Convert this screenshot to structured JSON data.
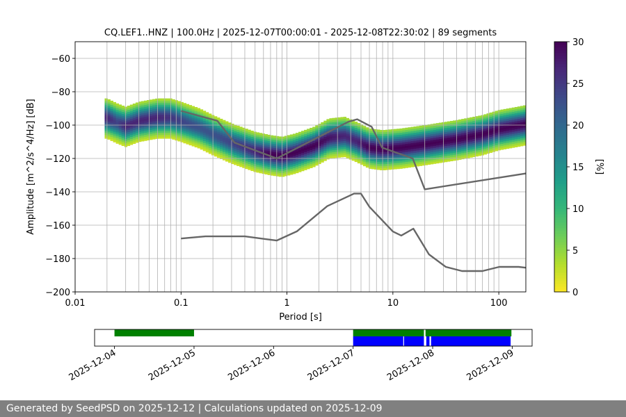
{
  "chart_data": [
    {
      "type": "heatmap",
      "title": "CQ.LEF1..HNZ | 100.0Hz | 2025-12-07T00:00:01 - 2025-12-08T22:30:02 | 89 segments",
      "xlabel": "Period [s]",
      "ylabel": "Amplitude [m^2/s^4/Hz] [dB]",
      "x_scale": "log",
      "xlim": [
        0.01,
        180
      ],
      "ylim": [
        -200,
        -50
      ],
      "x_ticks": [
        0.01,
        0.1,
        1,
        10,
        100
      ],
      "x_tick_labels": [
        "0.01",
        "0.1",
        "1",
        "10",
        "100"
      ],
      "y_ticks": [
        -200,
        -180,
        -160,
        -140,
        -120,
        -100,
        -80,
        -60
      ],
      "y_tick_labels": [
        "−200",
        "−180",
        "−160",
        "−140",
        "−120",
        "−100",
        "−80",
        "−60"
      ],
      "grid": true,
      "colorbar": {
        "label": "[%]",
        "range": [
          0,
          30
        ],
        "ticks": [
          0,
          5,
          10,
          15,
          20,
          25,
          30
        ],
        "colormap": "viridis_r"
      },
      "density_band": [
        [
          0.02,
          -96,
          0.9
        ],
        [
          0.025,
          -99,
          0.8
        ],
        [
          0.03,
          -101,
          0.9
        ],
        [
          0.04,
          -98,
          0.9
        ],
        [
          0.06,
          -96,
          0.9
        ],
        [
          0.08,
          -96,
          0.85
        ],
        [
          0.1,
          -98,
          0.8
        ],
        [
          0.15,
          -102,
          0.75
        ],
        [
          0.2,
          -106,
          0.75
        ],
        [
          0.3,
          -111,
          0.8
        ],
        [
          0.5,
          -116,
          0.9
        ],
        [
          0.7,
          -118,
          1.0
        ],
        [
          0.9,
          -119,
          1.0
        ],
        [
          1.2,
          -117,
          1.0
        ],
        [
          1.8,
          -113,
          1.0
        ],
        [
          2.5,
          -108,
          0.95
        ],
        [
          3.5,
          -107,
          0.9
        ],
        [
          4.5,
          -110,
          0.9
        ],
        [
          6,
          -114,
          1.0
        ],
        [
          8,
          -115,
          1.0
        ],
        [
          12,
          -114,
          1.0
        ],
        [
          20,
          -112,
          1.0
        ],
        [
          40,
          -109,
          1.0
        ],
        [
          70,
          -106,
          1.0
        ],
        [
          100,
          -103,
          1.0
        ],
        [
          150,
          -101,
          1.0
        ],
        [
          180,
          -100,
          1.0
        ]
      ],
      "nhnm": {
        "x": [
          0.1,
          0.22,
          0.32,
          0.8,
          3.8,
          4.6,
          6.3,
          7.9,
          15.4,
          20,
          180
        ],
        "y": [
          -91.5,
          -97.4,
          -110.5,
          -120,
          -98,
          -96.5,
          -101,
          -113.5,
          -120,
          -138.5,
          -129
        ]
      },
      "nlnm": {
        "x": [
          0.1,
          0.17,
          0.4,
          0.8,
          1.24,
          2.4,
          4.3,
          5,
          6,
          10,
          12,
          15.6,
          21.9,
          31.6,
          45,
          70,
          101,
          154,
          180
        ],
        "y": [
          -168,
          -166.7,
          -166.7,
          -169.2,
          -163.7,
          -148.6,
          -141.1,
          -141.1,
          -149,
          -163.8,
          -166.2,
          -162.1,
          -177.5,
          -185,
          -187.5,
          -187.5,
          -185,
          -185,
          -185.5
        ]
      }
    },
    {
      "type": "timeline",
      "x_tick_labels": [
        "2025-12-04",
        "2025-12-05",
        "2025-12-06",
        "2025-12-07",
        "2025-12-08",
        "2025-12-09"
      ],
      "xlim_days": [
        3.75,
        9.25
      ],
      "colors": {
        "available": "#008000",
        "used": "#0000ff"
      },
      "available_segments": [
        [
          4.0,
          5.0
        ],
        [
          7.0,
          7.89
        ],
        [
          7.91,
          8.99
        ]
      ],
      "used_segments": [
        [
          7.0,
          7.63
        ],
        [
          7.64,
          7.89
        ],
        [
          7.92,
          7.96
        ],
        [
          7.98,
          8.98
        ]
      ]
    }
  ],
  "footer": {
    "text": "Generated by SeedPSD on 2025-12-12 | Calculations updated on 2025-12-09"
  }
}
